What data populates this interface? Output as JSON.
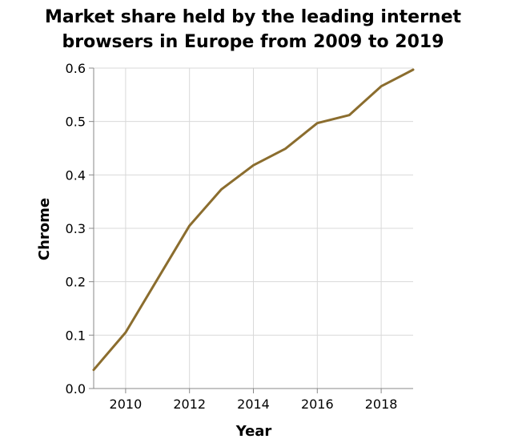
{
  "chart_data": {
    "type": "line",
    "title_lines": [
      "Market share held by the leading internet",
      "browsers in Europe from 2009 to 2019"
    ],
    "xlabel": "Year",
    "ylabel": "Chrome",
    "xlim": [
      2009,
      2019
    ],
    "ylim": [
      0,
      0.6
    ],
    "xticks": [
      2010,
      2012,
      2014,
      2016,
      2018
    ],
    "yticks": [
      "0.0",
      "0.1",
      "0.2",
      "0.3",
      "0.4",
      "0.5",
      "0.6"
    ],
    "grid": true,
    "series": [
      {
        "color": "#8b6d2e",
        "x": [
          2009,
          2010,
          2011,
          2012,
          2013,
          2014,
          2015,
          2016,
          2017,
          2018,
          2019
        ],
        "y": [
          0.035,
          0.105,
          0.205,
          0.305,
          0.373,
          0.418,
          0.449,
          0.497,
          0.512,
          0.566,
          0.597
        ]
      }
    ]
  }
}
